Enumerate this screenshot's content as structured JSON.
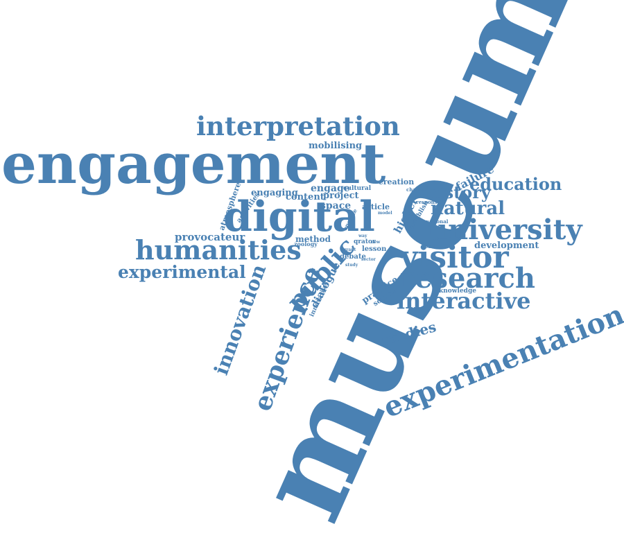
{
  "theme": {
    "word_color": "#4a81b3",
    "background": "#ffffff"
  },
  "words": {
    "museum": "museum",
    "engagement": "engagement",
    "interpretation": "interpretation",
    "mobilising": "mobilising",
    "digital": "digital",
    "humanities": "humanities",
    "experimental": "experimental",
    "provocateur": "provocateur",
    "innovation": "innovation",
    "experience": "experience",
    "public": "public",
    "dialogue": "dialogue",
    "atmosphere": "atmosphere",
    "activities": "activities",
    "engaging": "engaging",
    "engage": "engage",
    "cultural": "cultural",
    "content": "content",
    "project": "project",
    "space": "space",
    "method": "method",
    "zoology": "zoology",
    "innovative": "innovative",
    "article": "article",
    "operate": "operate",
    "qrator": "qrator",
    "lesson": "lesson",
    "debate": "debate",
    "grant": "grant",
    "way": "way",
    "new": "new",
    "sector": "sector",
    "study": "study",
    "creation": "creation",
    "change": "change",
    "higher": "higher",
    "establish": "establish",
    "response": "response",
    "model": "model",
    "national": "national",
    "london": "london",
    "practice": "practice",
    "source": "source",
    "knowledge": "knowledge",
    "failure": "failure",
    "education": "education",
    "history": "history",
    "natural": "natural",
    "university": "university",
    "development": "development",
    "visitor": "visitor",
    "research": "research",
    "interactive": "interactive",
    "studies": "studies",
    "experimentation": "experimentation"
  }
}
